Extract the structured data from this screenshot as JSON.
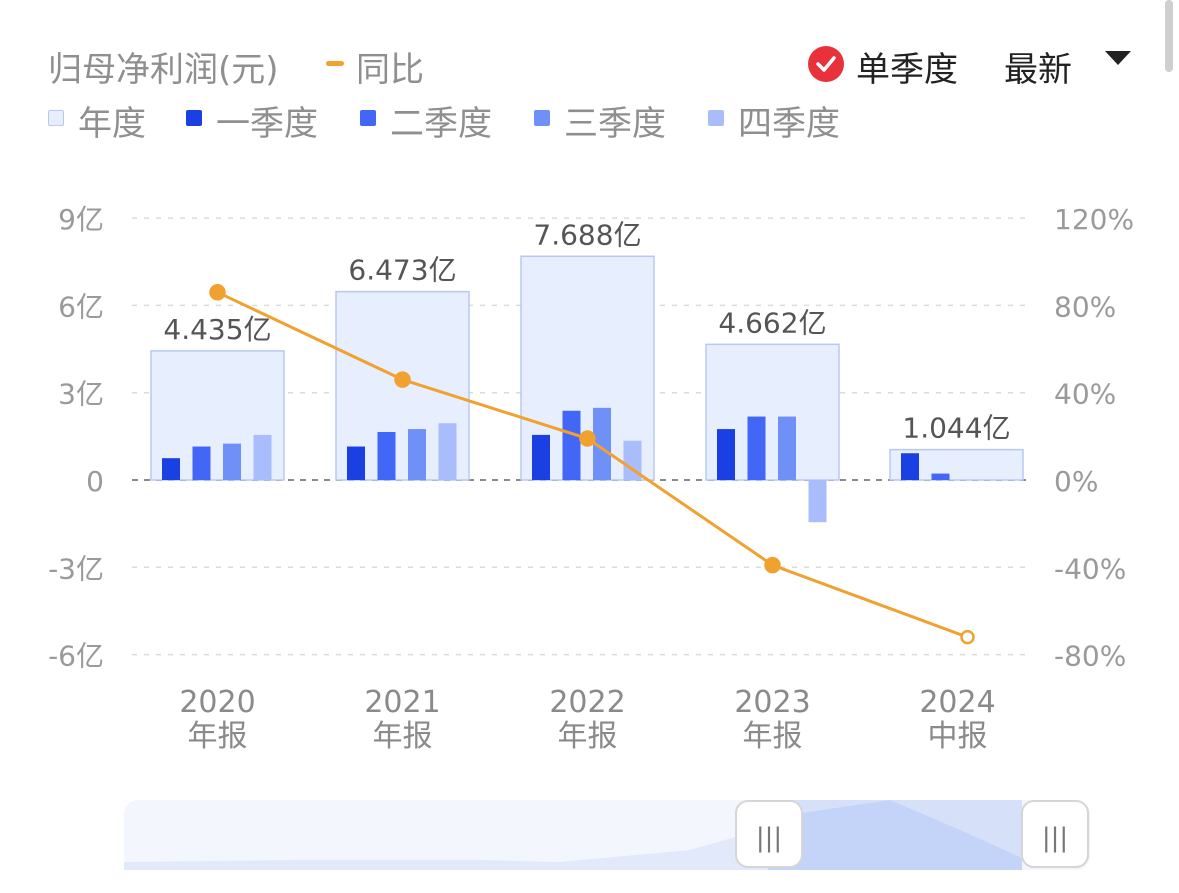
{
  "header": {
    "title": "归母净利润(元)",
    "yoy_label": "同比",
    "mode_label": "单季度",
    "latest_label": "最新"
  },
  "legend": [
    {
      "label": "年度",
      "color": "#e7eefe"
    },
    {
      "label": "一季度",
      "color": "#1a3fe2"
    },
    {
      "label": "二季度",
      "color": "#4266f5"
    },
    {
      "label": "三季度",
      "color": "#6f90f7"
    },
    {
      "label": "四季度",
      "color": "#a9bcfb"
    }
  ],
  "slider": {
    "handle_left": "|||",
    "handle_right": "|||"
  },
  "chart_data": {
    "type": "bar",
    "categories": [
      "2020\n年报",
      "2021\n年报",
      "2022\n年报",
      "2023\n年报",
      "2024\n中报"
    ],
    "annual": {
      "name": "年度",
      "values": [
        4.435,
        6.473,
        7.688,
        4.662,
        1.044
      ],
      "labels": [
        "4.435亿",
        "6.473亿",
        "7.688亿",
        "4.662亿",
        "1.044亿"
      ]
    },
    "series": [
      {
        "name": "一季度",
        "values": [
          0.75,
          1.15,
          1.55,
          1.75,
          0.92
        ]
      },
      {
        "name": "二季度",
        "values": [
          1.15,
          1.65,
          2.38,
          2.18,
          0.22
        ]
      },
      {
        "name": "三季度",
        "values": [
          1.25,
          1.75,
          2.48,
          2.18,
          null
        ]
      },
      {
        "name": "四季度",
        "values": [
          1.55,
          1.95,
          1.35,
          -1.45,
          null
        ]
      }
    ],
    "yoy": {
      "name": "同比",
      "values": [
        86,
        46,
        19,
        -39,
        -72
      ]
    },
    "y_left": {
      "ticks": [
        "9亿",
        "6亿",
        "3亿",
        "0",
        "-3亿",
        "-6亿"
      ],
      "tick_values": [
        9,
        6,
        3,
        0,
        -3,
        -6
      ],
      "ylim": [
        -6,
        9
      ]
    },
    "y_right": {
      "ticks": [
        "120%",
        "80%",
        "40%",
        "0%",
        "-40%",
        "-80%"
      ],
      "tick_values": [
        120,
        80,
        40,
        0,
        -40,
        -80
      ],
      "ylim": [
        -80,
        120
      ]
    },
    "grid": true
  }
}
